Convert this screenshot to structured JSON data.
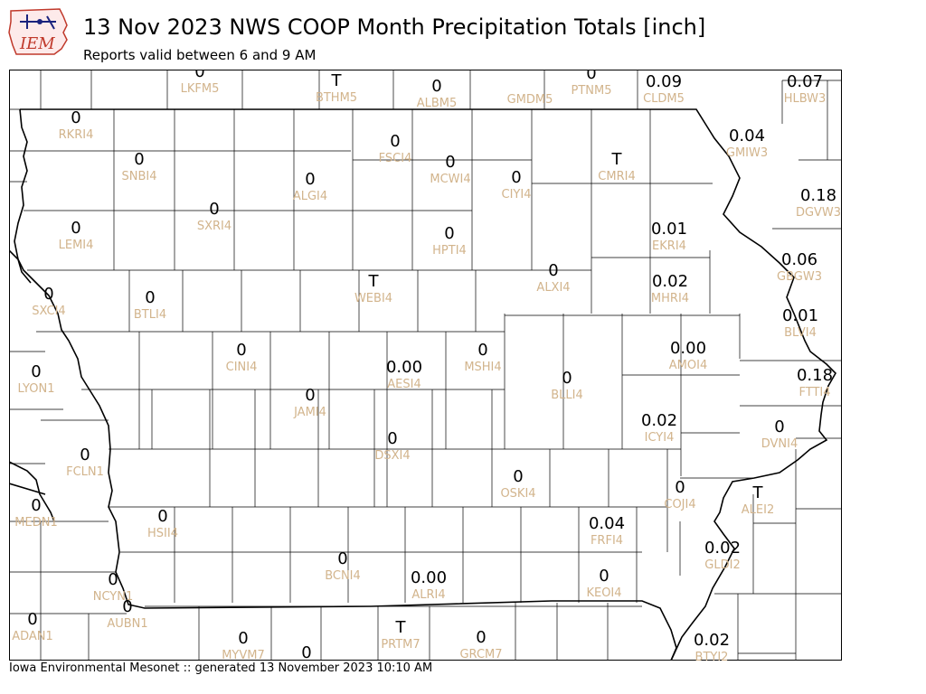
{
  "header": {
    "title": "13 Nov 2023 NWS COOP Month Precipitation Totals [inch]",
    "subtitle": "Reports valid between 6 and 9 AM"
  },
  "logo": {
    "text": "IEM",
    "icon": "iem-logo-icon"
  },
  "footer": {
    "text": "Iowa Environmental Mesonet :: generated 13 November 2023 10:10 AM"
  },
  "colors": {
    "value_text": "#000000",
    "station_id_text": "#d2b48c",
    "boundary": "#000000",
    "logo_red": "#c0392b",
    "logo_blue": "#1a237e"
  },
  "map": {
    "stations": [
      {
        "id": "LKFM5",
        "value": "0"
      },
      {
        "id": "BTHM5",
        "value": "T"
      },
      {
        "id": "ALBM5",
        "value": "0"
      },
      {
        "id": "GMDM5",
        "value": ""
      },
      {
        "id": "PTNM5",
        "value": "0"
      },
      {
        "id": "CLDM5",
        "value": "0.09"
      },
      {
        "id": "HLBW3",
        "value": "0.07"
      },
      {
        "id": "RKRI4",
        "value": "0"
      },
      {
        "id": "SNBI4",
        "value": "0"
      },
      {
        "id": "FSCI4",
        "value": "0"
      },
      {
        "id": "MCWI4",
        "value": "0"
      },
      {
        "id": "CIYI4",
        "value": "0"
      },
      {
        "id": "CMRI4",
        "value": "T"
      },
      {
        "id": "GMIW3",
        "value": "0.04"
      },
      {
        "id": "ALGI4",
        "value": "0"
      },
      {
        "id": "SXRI4",
        "value": "0"
      },
      {
        "id": "DGVW3",
        "value": "0.18"
      },
      {
        "id": "LEMI4",
        "value": "0"
      },
      {
        "id": "HPTI4",
        "value": "0"
      },
      {
        "id": "EKRI4",
        "value": "0.01"
      },
      {
        "id": "GBGW3",
        "value": "0.06"
      },
      {
        "id": "ALXI4",
        "value": "0"
      },
      {
        "id": "WEBI4",
        "value": "T"
      },
      {
        "id": "MHRI4",
        "value": "0.02"
      },
      {
        "id": "SXCI4",
        "value": "0"
      },
      {
        "id": "BTLI4",
        "value": "0"
      },
      {
        "id": "BLVI4",
        "value": "0.01"
      },
      {
        "id": "CINI4",
        "value": "0"
      },
      {
        "id": "MSHI4",
        "value": "0"
      },
      {
        "id": "AMOI4",
        "value": "0.00"
      },
      {
        "id": "AESI4",
        "value": "0.00"
      },
      {
        "id": "LYON1",
        "value": "0"
      },
      {
        "id": "BLLI4",
        "value": "0"
      },
      {
        "id": "FTTI4",
        "value": "0.18"
      },
      {
        "id": "JAMI4",
        "value": "0"
      },
      {
        "id": "ICYI4",
        "value": "0.02"
      },
      {
        "id": "DVNI4",
        "value": "0"
      },
      {
        "id": "DSXI4",
        "value": "0"
      },
      {
        "id": "FCLN1",
        "value": "0"
      },
      {
        "id": "OSKI4",
        "value": "0"
      },
      {
        "id": "COJI4",
        "value": "0"
      },
      {
        "id": "ALEI2",
        "value": "T"
      },
      {
        "id": "MEDN1",
        "value": "0"
      },
      {
        "id": "HSII4",
        "value": "0"
      },
      {
        "id": "FRFI4",
        "value": "0.04"
      },
      {
        "id": "BCNI4",
        "value": "0"
      },
      {
        "id": "GLDI2",
        "value": "0.02"
      },
      {
        "id": "ALRI4",
        "value": "0.00"
      },
      {
        "id": "KEOI4",
        "value": "0"
      },
      {
        "id": "NCYN1",
        "value": "0"
      },
      {
        "id": "ADAN1",
        "value": "0"
      },
      {
        "id": "AUBN1",
        "value": "0"
      },
      {
        "id": "MYVM7",
        "value": "0"
      },
      {
        "id": "PRTM7",
        "value": "T"
      },
      {
        "id": "GRCM7",
        "value": "0"
      },
      {
        "id": "BTYI2",
        "value": "0.02"
      },
      {
        "id": "bottom-edge",
        "value": "0"
      }
    ]
  }
}
